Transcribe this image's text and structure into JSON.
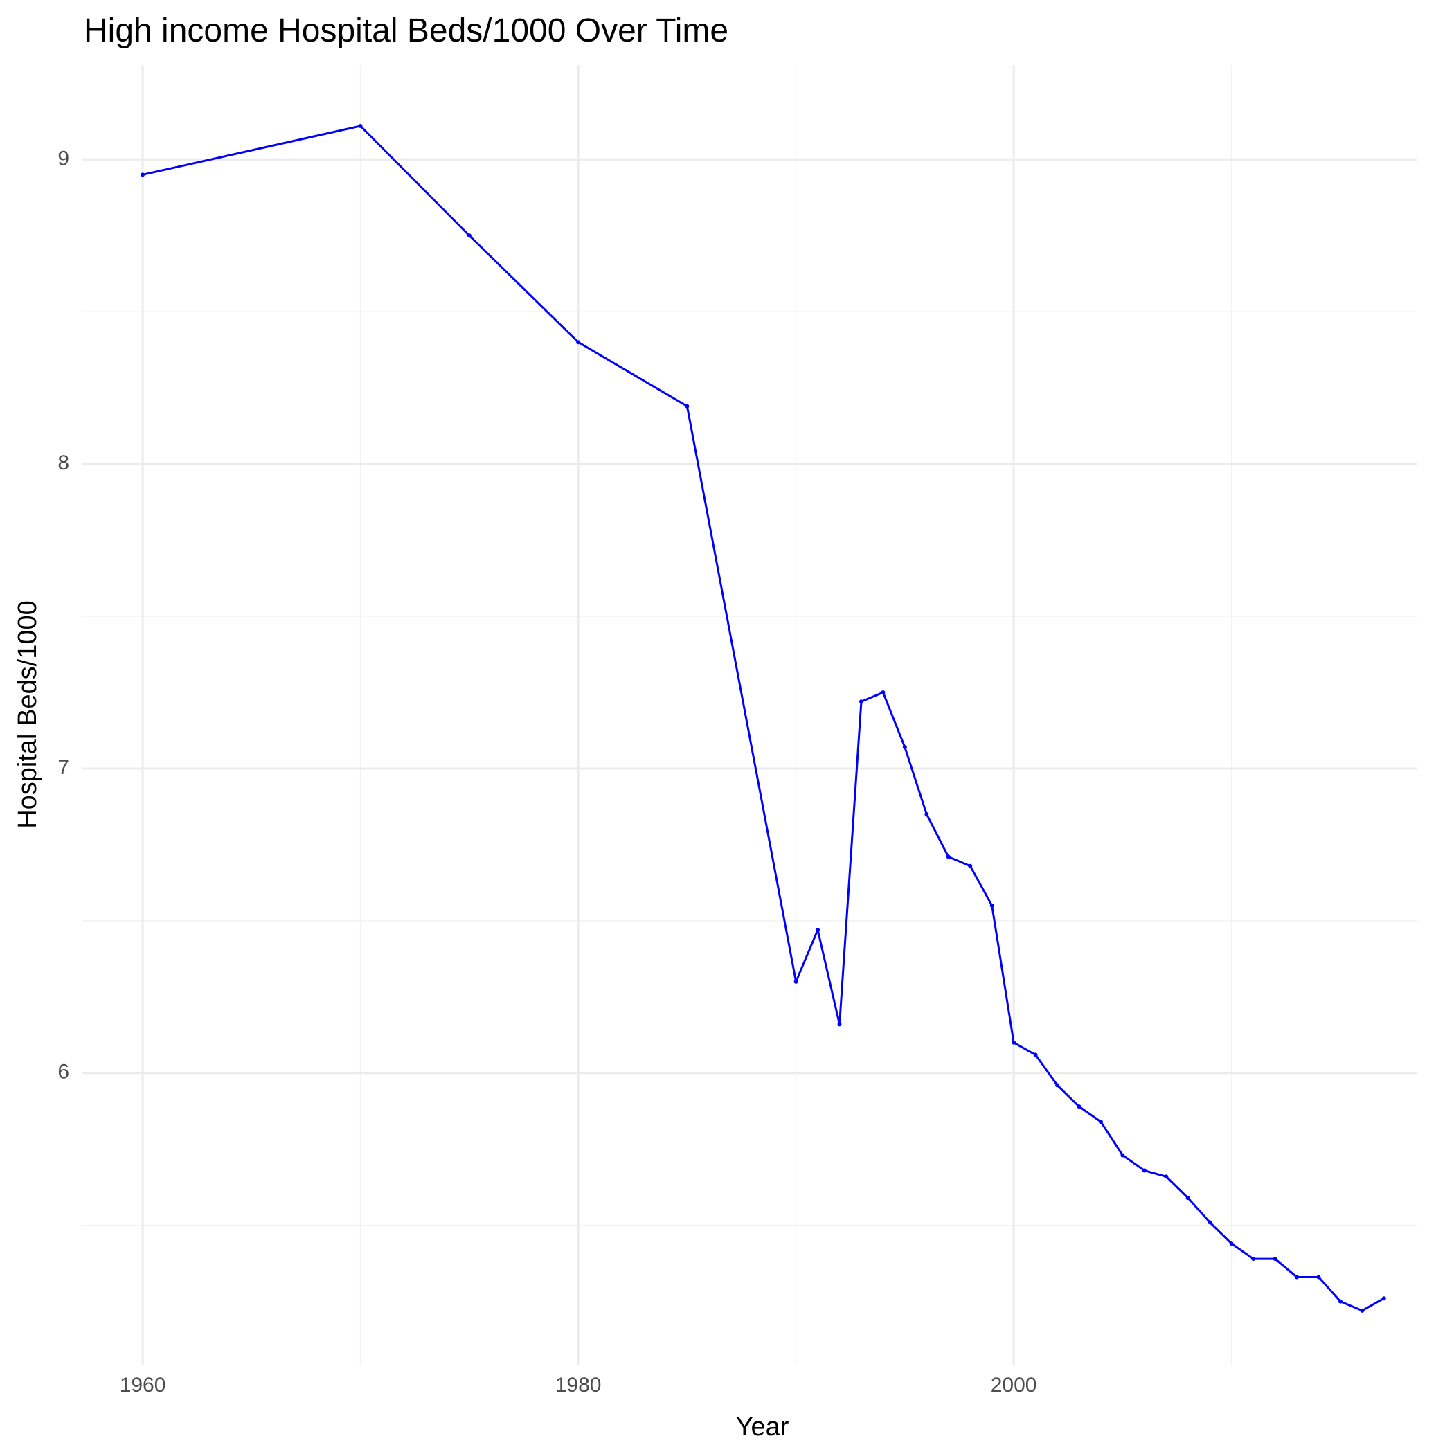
{
  "chart_data": {
    "type": "line",
    "title": "High income Hospital Beds/1000 Over Time",
    "x_label": "Year",
    "y_label": "Hospital Beds/1000",
    "x": [
      1960,
      1970,
      1975,
      1980,
      1985,
      1990,
      1991,
      1992,
      1993,
      1994,
      1995,
      1996,
      1997,
      1998,
      1999,
      2000,
      2001,
      2002,
      2003,
      2004,
      2005,
      2006,
      2007,
      2008,
      2009,
      2010,
      2011,
      2012,
      2013,
      2014,
      2015,
      2016,
      2017
    ],
    "series": [
      {
        "name": "High income",
        "color": "#0000ff",
        "values": [
          8.95,
          9.11,
          8.75,
          8.4,
          8.19,
          6.3,
          6.47,
          6.16,
          7.22,
          7.25,
          7.07,
          6.85,
          6.71,
          6.68,
          6.55,
          6.1,
          6.06,
          5.96,
          5.89,
          5.84,
          5.73,
          5.68,
          5.66,
          5.59,
          5.51,
          5.44,
          5.39,
          5.39,
          5.33,
          5.33,
          5.25,
          5.22,
          5.26
        ]
      }
    ],
    "xlim": [
      1957.2,
      2018.5
    ],
    "ylim": [
      5.04,
      9.31
    ],
    "xticks": [
      1960,
      1980,
      2000
    ],
    "yticks": [
      6,
      7,
      8,
      9
    ],
    "x_minor_grid": [
      1970,
      1990,
      2010
    ],
    "y_minor_grid": [
      5.5,
      6.5,
      7.5,
      8.5
    ],
    "grid": true
  }
}
